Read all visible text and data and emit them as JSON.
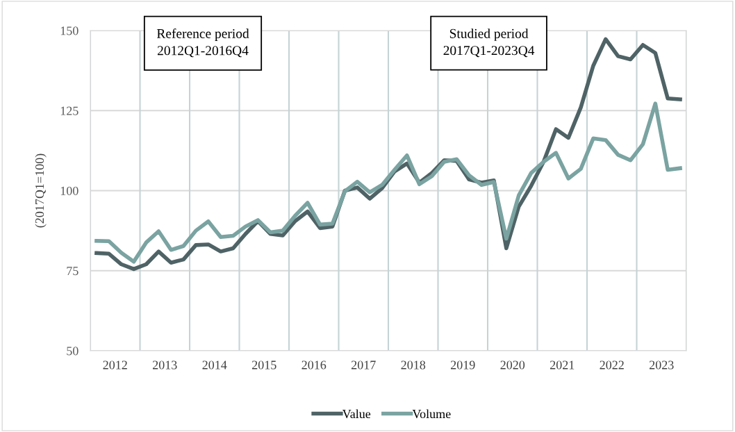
{
  "chart_data": {
    "type": "line",
    "ylabel": "(2017Q1=100)",
    "annotations": [
      "Reference period\n2012Q1-2016Q4",
      "Studied period\n2017Q1-2023Q4"
    ],
    "x": [
      2012.125,
      2012.375,
      2012.625,
      2012.875,
      2013.125,
      2013.375,
      2013.625,
      2013.875,
      2014.125,
      2014.375,
      2014.625,
      2014.875,
      2015.125,
      2015.375,
      2015.625,
      2015.875,
      2016.125,
      2016.375,
      2016.625,
      2016.875,
      2017.125,
      2017.375,
      2017.625,
      2017.875,
      2018.125,
      2018.375,
      2018.625,
      2018.875,
      2019.125,
      2019.375,
      2019.625,
      2019.875,
      2020.125,
      2020.375,
      2020.625,
      2020.875,
      2021.125,
      2021.375,
      2021.625,
      2021.875,
      2022.125,
      2022.375,
      2022.625,
      2022.875,
      2023.125,
      2023.375,
      2023.625,
      2023.875
    ],
    "series": [
      {
        "name": "Value",
        "color": "#4f6366",
        "values": [
          80.5,
          80.3,
          77,
          75.5,
          77,
          81,
          77.5,
          78.5,
          83,
          83.2,
          81,
          82,
          86.5,
          90.5,
          86.5,
          86,
          90.5,
          93.5,
          88.3,
          88.8,
          100,
          101,
          97.5,
          100.8,
          106,
          108.5,
          102.5,
          105.5,
          109.5,
          109.3,
          103.5,
          102.5,
          103.2,
          82,
          95,
          101.5,
          109,
          119.2,
          116.5,
          126,
          139,
          147.3,
          142,
          141,
          145.5,
          143,
          128.8,
          128.5
        ]
      },
      {
        "name": "Volume",
        "color": "#7aa3a1",
        "values": [
          84.3,
          84.2,
          80.6,
          77.8,
          83.8,
          87.3,
          81.5,
          82.7,
          87.5,
          90.4,
          85.5,
          85.9,
          88.8,
          90.8,
          87,
          87.5,
          92.2,
          96.2,
          89.4,
          89.7,
          99.8,
          102.8,
          99.5,
          101.8,
          106.5,
          111,
          102,
          104.5,
          109,
          109.8,
          104.8,
          101.8,
          102.7,
          85,
          98.5,
          105.5,
          109,
          111.8,
          103.8,
          106.8,
          116.3,
          115.8,
          111.2,
          109.5,
          114.5,
          127.2,
          106.5,
          107
        ]
      }
    ],
    "xlim": [
      2012,
      2024
    ],
    "xticks": [
      {
        "value": 2012,
        "label": null
      },
      {
        "value": 2012.5,
        "label": "2012"
      },
      {
        "value": 2013,
        "label": null
      },
      {
        "value": 2013.5,
        "label": "2013"
      },
      {
        "value": 2014,
        "label": null
      },
      {
        "value": 2014.5,
        "label": "2014"
      },
      {
        "value": 2015,
        "label": null
      },
      {
        "value": 2015.5,
        "label": "2015"
      },
      {
        "value": 2016,
        "label": null
      },
      {
        "value": 2016.5,
        "label": "2016"
      },
      {
        "value": 2017,
        "label": null
      },
      {
        "value": 2017.5,
        "label": "2017"
      },
      {
        "value": 2018,
        "label": null
      },
      {
        "value": 2018.5,
        "label": "2018"
      },
      {
        "value": 2019,
        "label": null
      },
      {
        "value": 2019.5,
        "label": "2019"
      },
      {
        "value": 2020,
        "label": null
      },
      {
        "value": 2020.5,
        "label": "2020"
      },
      {
        "value": 2021,
        "label": null
      },
      {
        "value": 2021.5,
        "label": "2021"
      },
      {
        "value": 2022,
        "label": null
      },
      {
        "value": 2022.5,
        "label": "2022"
      },
      {
        "value": 2023,
        "label": null
      },
      {
        "value": 2023.5,
        "label": "2023"
      },
      {
        "value": 2024,
        "label": null
      }
    ],
    "ylim": [
      50,
      150
    ],
    "yticks": [
      50,
      75,
      100,
      125,
      150
    ],
    "grid": true,
    "legend": "bottom",
    "marker": "none",
    "line_style": "solid"
  }
}
